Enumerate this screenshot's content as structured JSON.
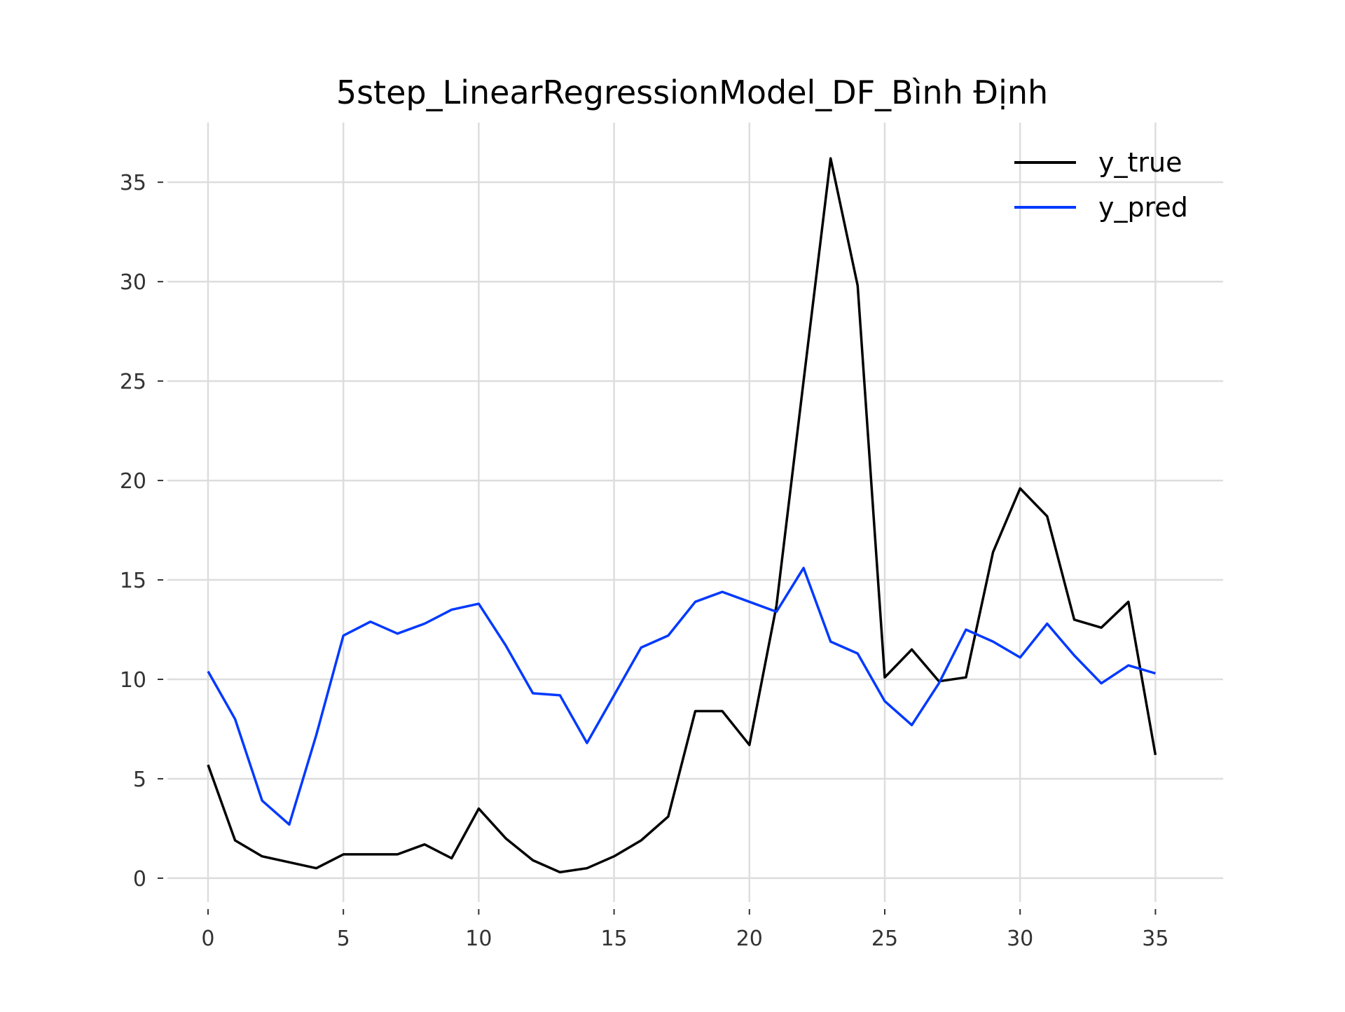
{
  "chart_data": {
    "type": "line",
    "title": "5step_LinearRegressionModel_DF_Bình Định",
    "xlabel": "",
    "ylabel": "",
    "xlim": [
      -1.5,
      37.5
    ],
    "ylim": [
      -1.2,
      38.0
    ],
    "xticks": [
      0,
      5,
      10,
      15,
      20,
      25,
      30,
      35
    ],
    "yticks": [
      0,
      5,
      10,
      15,
      20,
      25,
      30,
      35
    ],
    "xtick_labels": [
      "0",
      "5",
      "10",
      "15",
      "20",
      "25",
      "30",
      "35"
    ],
    "ytick_labels": [
      "0",
      "5",
      "10",
      "15",
      "20",
      "25",
      "30",
      "35"
    ],
    "grid": true,
    "legend_position": "top-right",
    "x": [
      0,
      1,
      2,
      3,
      4,
      5,
      6,
      7,
      8,
      9,
      10,
      11,
      12,
      13,
      14,
      15,
      16,
      17,
      18,
      19,
      20,
      21,
      22,
      23,
      24,
      25,
      26,
      27,
      28,
      29,
      30,
      31,
      32,
      33,
      34,
      35
    ],
    "series": [
      {
        "name": "y_true",
        "color": "#000000",
        "values": [
          5.7,
          1.9,
          1.1,
          0.8,
          0.5,
          1.2,
          1.2,
          1.2,
          1.7,
          1.0,
          3.5,
          2.0,
          0.9,
          0.3,
          0.5,
          1.1,
          1.9,
          3.1,
          8.4,
          8.4,
          6.7,
          13.7,
          25.0,
          36.2,
          29.8,
          10.1,
          11.5,
          9.9,
          10.1,
          16.4,
          19.6,
          18.2,
          13.0,
          12.6,
          13.9,
          6.2
        ]
      },
      {
        "name": "y_pred",
        "color": "#0039ff",
        "values": [
          10.4,
          8.0,
          3.9,
          2.7,
          7.2,
          12.2,
          12.9,
          12.3,
          12.8,
          13.5,
          13.8,
          11.7,
          9.3,
          9.2,
          6.8,
          9.2,
          11.6,
          12.2,
          13.9,
          14.4,
          13.9,
          13.4,
          15.6,
          11.9,
          11.3,
          8.9,
          7.7,
          9.8,
          12.5,
          11.9,
          11.1,
          12.8,
          11.2,
          9.8,
          10.7,
          10.3
        ]
      }
    ]
  }
}
